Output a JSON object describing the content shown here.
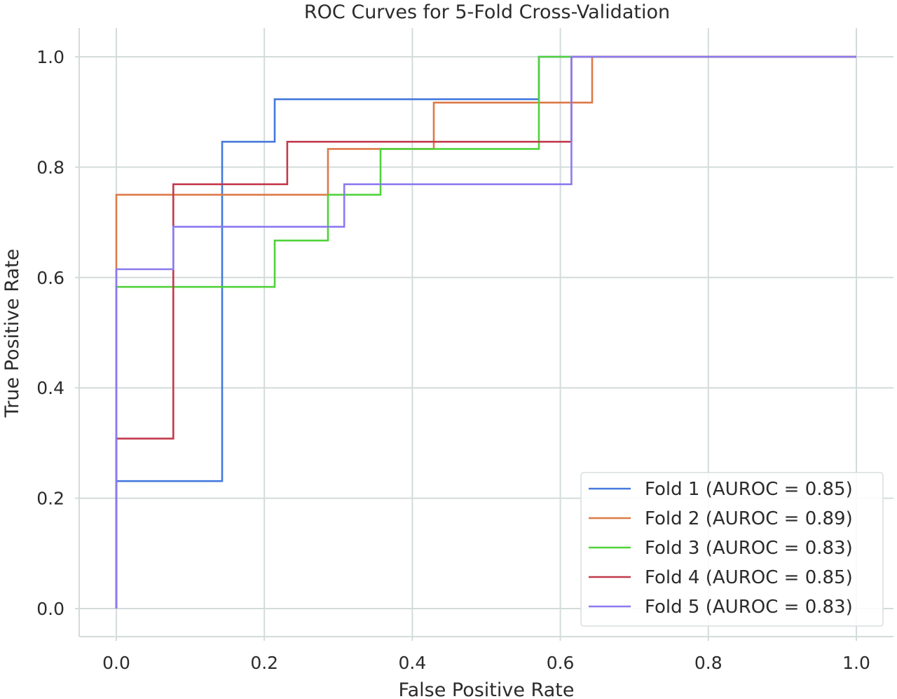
{
  "chart_data": {
    "type": "line",
    "title": "ROC Curves for 5-Fold Cross-Validation",
    "xlabel": "False Positive Rate",
    "ylabel": "True Positive Rate",
    "xlim": [
      -0.05,
      1.05
    ],
    "ylim": [
      -0.05,
      1.05
    ],
    "xticks": [
      "0.0",
      "0.2",
      "0.4",
      "0.6",
      "0.8",
      "1.0"
    ],
    "yticks": [
      "0.0",
      "0.2",
      "0.4",
      "0.6",
      "0.8",
      "1.0"
    ],
    "grid": true,
    "legend_position": "lower-right",
    "series": [
      {
        "name": "Fold 1 (AUROC = 0.85)",
        "color": "#4479dd",
        "x": [
          0.0,
          0.0,
          0.143,
          0.143,
          0.214,
          0.214,
          0.571,
          0.571,
          0.643,
          1.0
        ],
        "y": [
          0.0,
          0.231,
          0.231,
          0.846,
          0.846,
          0.923,
          0.923,
          1.0,
          1.0,
          1.0
        ]
      },
      {
        "name": "Fold 2 (AUROC = 0.89)",
        "color": "#dd7a48",
        "x": [
          0.0,
          0.0,
          0.286,
          0.286,
          0.429,
          0.429,
          0.643,
          0.643,
          1.0
        ],
        "y": [
          0.0,
          0.75,
          0.75,
          0.833,
          0.833,
          0.917,
          0.917,
          1.0,
          1.0
        ]
      },
      {
        "name": "Fold 3 (AUROC = 0.83)",
        "color": "#50d23b",
        "x": [
          0.0,
          0.0,
          0.214,
          0.214,
          0.286,
          0.286,
          0.357,
          0.357,
          0.571,
          0.571,
          1.0
        ],
        "y": [
          0.0,
          0.583,
          0.583,
          0.667,
          0.667,
          0.75,
          0.75,
          0.833,
          0.833,
          1.0,
          1.0
        ]
      },
      {
        "name": "Fold 4 (AUROC = 0.85)",
        "color": "#c23a4c",
        "x": [
          0.0,
          0.0,
          0.077,
          0.077,
          0.231,
          0.231,
          0.615,
          0.615,
          1.0
        ],
        "y": [
          0.0,
          0.308,
          0.308,
          0.769,
          0.769,
          0.846,
          0.846,
          1.0,
          1.0
        ]
      },
      {
        "name": "Fold 5 (AUROC = 0.83)",
        "color": "#8b7af0",
        "x": [
          0.0,
          0.0,
          0.077,
          0.077,
          0.308,
          0.308,
          0.615,
          0.615,
          1.0
        ],
        "y": [
          0.0,
          0.615,
          0.615,
          0.692,
          0.692,
          0.769,
          0.769,
          1.0,
          1.0
        ]
      }
    ]
  }
}
